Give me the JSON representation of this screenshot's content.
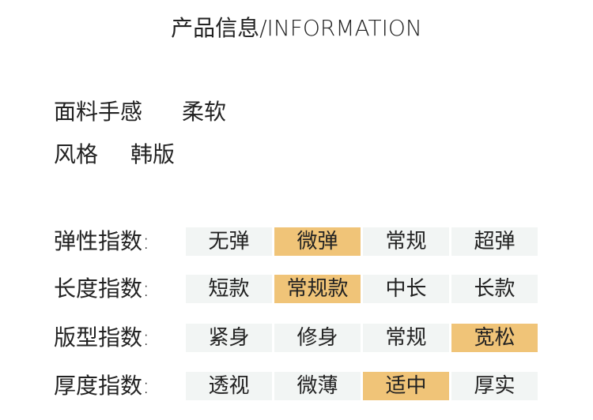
{
  "title": "产品信息/INFORMATION",
  "attributes": [
    {
      "label": "面料手感",
      "value": "柔软"
    },
    {
      "label": "风格",
      "value": "韩版"
    }
  ],
  "colors": {
    "selected": "#f0c478",
    "unselected": "#f2f5f4"
  },
  "indices": [
    {
      "label": "弹性指数:",
      "options": [
        "无弹",
        "微弹",
        "常规",
        "超弹"
      ],
      "selected": 1
    },
    {
      "label": "长度指数:",
      "options": [
        "短款",
        "常规款",
        "中长",
        "长款"
      ],
      "selected": 1
    },
    {
      "label": "版型指数:",
      "options": [
        "紧身",
        "修身",
        "常规",
        "宽松"
      ],
      "selected": 3
    },
    {
      "label": "厚度指数:",
      "options": [
        "透视",
        "微薄",
        "适中",
        "厚实"
      ],
      "selected": 2
    }
  ]
}
